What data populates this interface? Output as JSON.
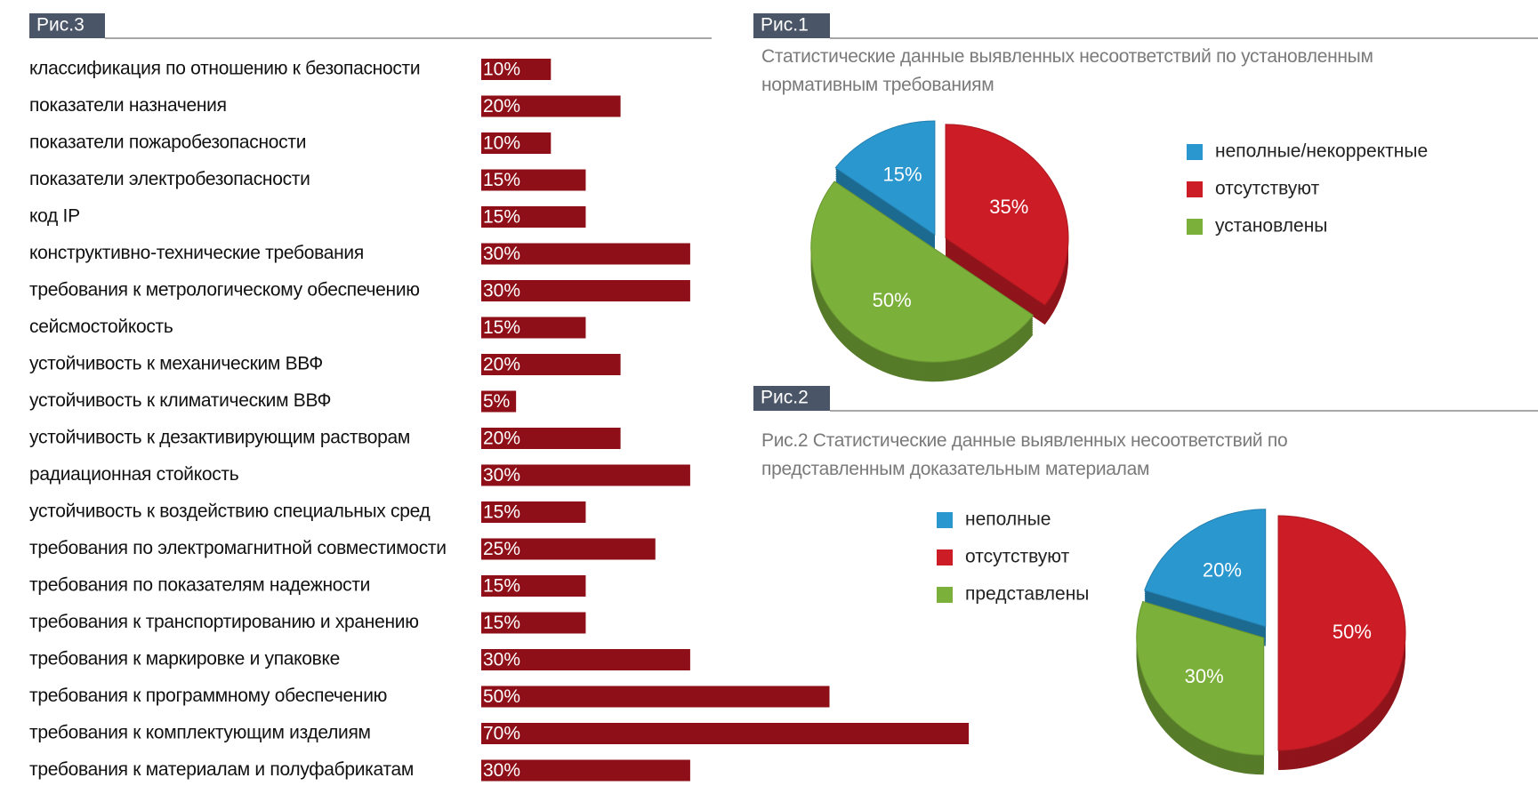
{
  "chart_data": [
    {
      "type": "hbar",
      "title": "Рис.3",
      "categories": [
        "классификация по отношению к безопасности",
        "показатели назначения",
        "показатели пожаробезопасности",
        "показатели электробезопасности",
        "код IP",
        "конструктивно-технические требования",
        "требования к метрологическому обеспечению",
        "сейсмостойкость",
        "устойчивость к механическим ВВФ",
        "устойчивость к климатическим ВВФ",
        "устойчивость к дезактивирующим растворам",
        "радиационная стойкость",
        "устойчивость к воздействию специальных сред",
        "требования по электромагнитной совместимости",
        "требования по показателям надежности",
        "требования к транспортированию и хранению",
        "требования к маркировке и упаковке",
        "требования к программному обеспечению",
        "требования к комплектующим изделиям",
        "требования к материалам и полуфабрикатам"
      ],
      "values": [
        10,
        20,
        10,
        15,
        15,
        30,
        30,
        15,
        20,
        5,
        20,
        30,
        15,
        25,
        15,
        15,
        30,
        50,
        70,
        30
      ],
      "value_labels": [
        "10%",
        "20%",
        "10%",
        "15%",
        "15%",
        "30%",
        "30%",
        "15%",
        "20%",
        "5%",
        "20%",
        "30%",
        "15%",
        "25%",
        "15%",
        "15%",
        "30%",
        "50%",
        "70%",
        "30%"
      ],
      "color": "#8e0f17"
    },
    {
      "type": "pie",
      "label": "Рис.1",
      "title": "Статистические данные выявленных несоответствий по установленным нормативным требованиям",
      "categories": [
        "неполные/некорректные",
        "отсутствуют",
        "установлены"
      ],
      "values": [
        15,
        35,
        50
      ],
      "value_labels": [
        "15%",
        "35%",
        "50%"
      ],
      "colors": [
        "#2a97cf",
        "#cc1c26",
        "#7bb03a"
      ]
    },
    {
      "type": "pie",
      "label": "Рис.2",
      "title": "Рис.2 Статистические данные выявленных несоответствий по представленным доказательным материалам",
      "categories": [
        "неполные",
        "отсутствуют",
        "представлены"
      ],
      "values": [
        20,
        50,
        30
      ],
      "value_labels": [
        "20%",
        "50%",
        "30%"
      ],
      "colors": [
        "#2a97cf",
        "#cc1c26",
        "#7bb03a"
      ]
    }
  ]
}
